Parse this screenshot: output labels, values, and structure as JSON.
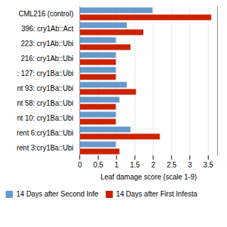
{
  "chart_data": {
    "type": "bar",
    "orientation": "horizontal",
    "categories": [
      "CML216 (control)",
      "396: cry1Ab::Act",
      "223: cry1Ab::Ubi",
      "216: cry1Ab::Ubi",
      ": 127: cry1Ba::Ubi",
      "nt 93: cry1Ba::Ubi",
      "nt 58: cry1Ba::Ubi",
      "nt 10: cry1Ba::Ubi",
      "rent 6:cry1Ba::Ubi",
      "rent 3:cry1Ba::Ubi"
    ],
    "series": [
      {
        "name": "14 Days after Second Infe",
        "color": "#6699cc",
        "values": [
          2.0,
          1.3,
          1.0,
          1.0,
          1.0,
          1.3,
          1.1,
          1.0,
          1.4,
          1.0
        ]
      },
      {
        "name": "14 Days after First Infesta",
        "color": "#cc2200",
        "values": [
          3.6,
          1.75,
          1.4,
          1.0,
          1.0,
          1.55,
          1.0,
          1.0,
          2.2,
          1.1
        ]
      }
    ],
    "xlabel": "Leaf damage score (scale 1-9)",
    "xlim": [
      0,
      3.75
    ],
    "xticks": [
      0,
      0.5,
      1,
      1.5,
      2,
      2.5,
      3,
      3.5
    ],
    "grid": true,
    "legend": "bottom"
  }
}
